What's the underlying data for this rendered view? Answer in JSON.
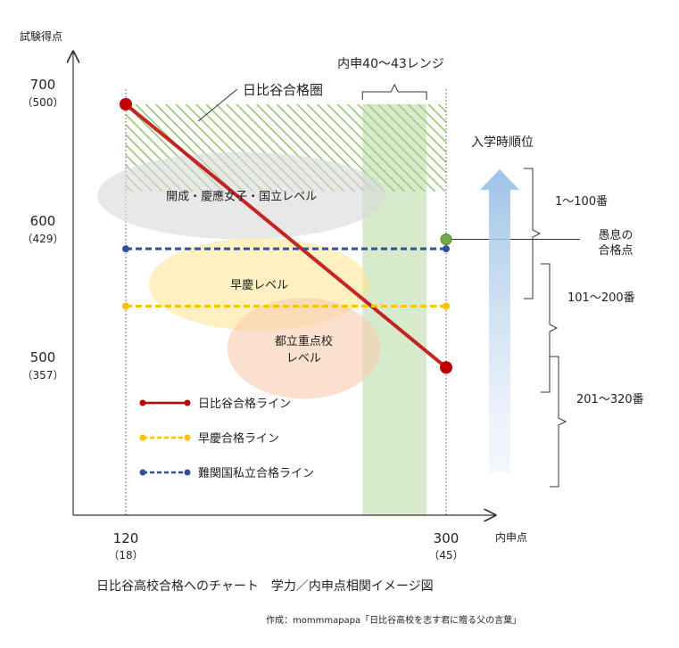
{
  "chart_data": {
    "type": "line",
    "title": "日比谷高校合格へのチャート　学力／内申点相関イメージ図",
    "credit": "作成：mommmapapa「日比谷高校を志す君に贈る父の言葉」",
    "ylabel": "試験得点",
    "xlabel": "内申点",
    "x_ticks": [
      {
        "value": 120,
        "label": "120",
        "sub": "（18）"
      },
      {
        "value": 300,
        "label": "300",
        "sub": "（45）"
      }
    ],
    "y_ticks": [
      {
        "value": 700,
        "label": "700",
        "sub": "（500）"
      },
      {
        "value": 600,
        "label": "600",
        "sub": "（429）"
      },
      {
        "value": 500,
        "label": "500",
        "sub": "（357）"
      }
    ],
    "series": [
      {
        "name": "日比谷合格ライン",
        "color": "#c00000",
        "style": "solid",
        "x": [
          120,
          300
        ],
        "y": [
          700,
          507
        ]
      },
      {
        "name": "早慶合格ライン",
        "color": "#ffc000",
        "style": "dashed",
        "x": [
          120,
          300
        ],
        "y": [
          552,
          552
        ]
      },
      {
        "name": "難関国私立合格ライン",
        "color": "#2f4f9f",
        "style": "dashed",
        "x": [
          120,
          300
        ],
        "y": [
          594,
          594
        ]
      }
    ],
    "zones": [
      {
        "label": "開成・慶應女子・国立レベル",
        "color": "#d9d9d9",
        "cx": 185,
        "cy": 633,
        "rx": 81,
        "ry": 32
      },
      {
        "label": "早慶レベル",
        "color": "#ffe699",
        "cx": 195,
        "cy": 568,
        "rx": 62,
        "ry": 34
      },
      {
        "label": "都立重点校\nレベル",
        "color": "#f8cbad",
        "cx": 220,
        "cy": 521,
        "rx": 43,
        "ry": 37
      }
    ],
    "hibiya_zone": {
      "label": "日比谷合格圏",
      "x_start": 120,
      "x_end": 300,
      "y_top": 700
    },
    "naishin_range": {
      "label": "内申40～43レンジ",
      "x_start": 253,
      "x_end": 289
    },
    "marker_point": {
      "label": "愚息の\n合格点",
      "x": 300,
      "y": 601,
      "color": "#70ad47"
    },
    "rank_arrow": {
      "label": "入学時順位"
    },
    "rank_brackets": [
      {
        "label": "1～100番"
      },
      {
        "label": "101～200番"
      },
      {
        "label": "201～320番"
      }
    ],
    "axis_range": {
      "x": [
        90,
        330
      ],
      "y": [
        450,
        730
      ]
    },
    "grid": false,
    "legend": "bottom-left"
  }
}
